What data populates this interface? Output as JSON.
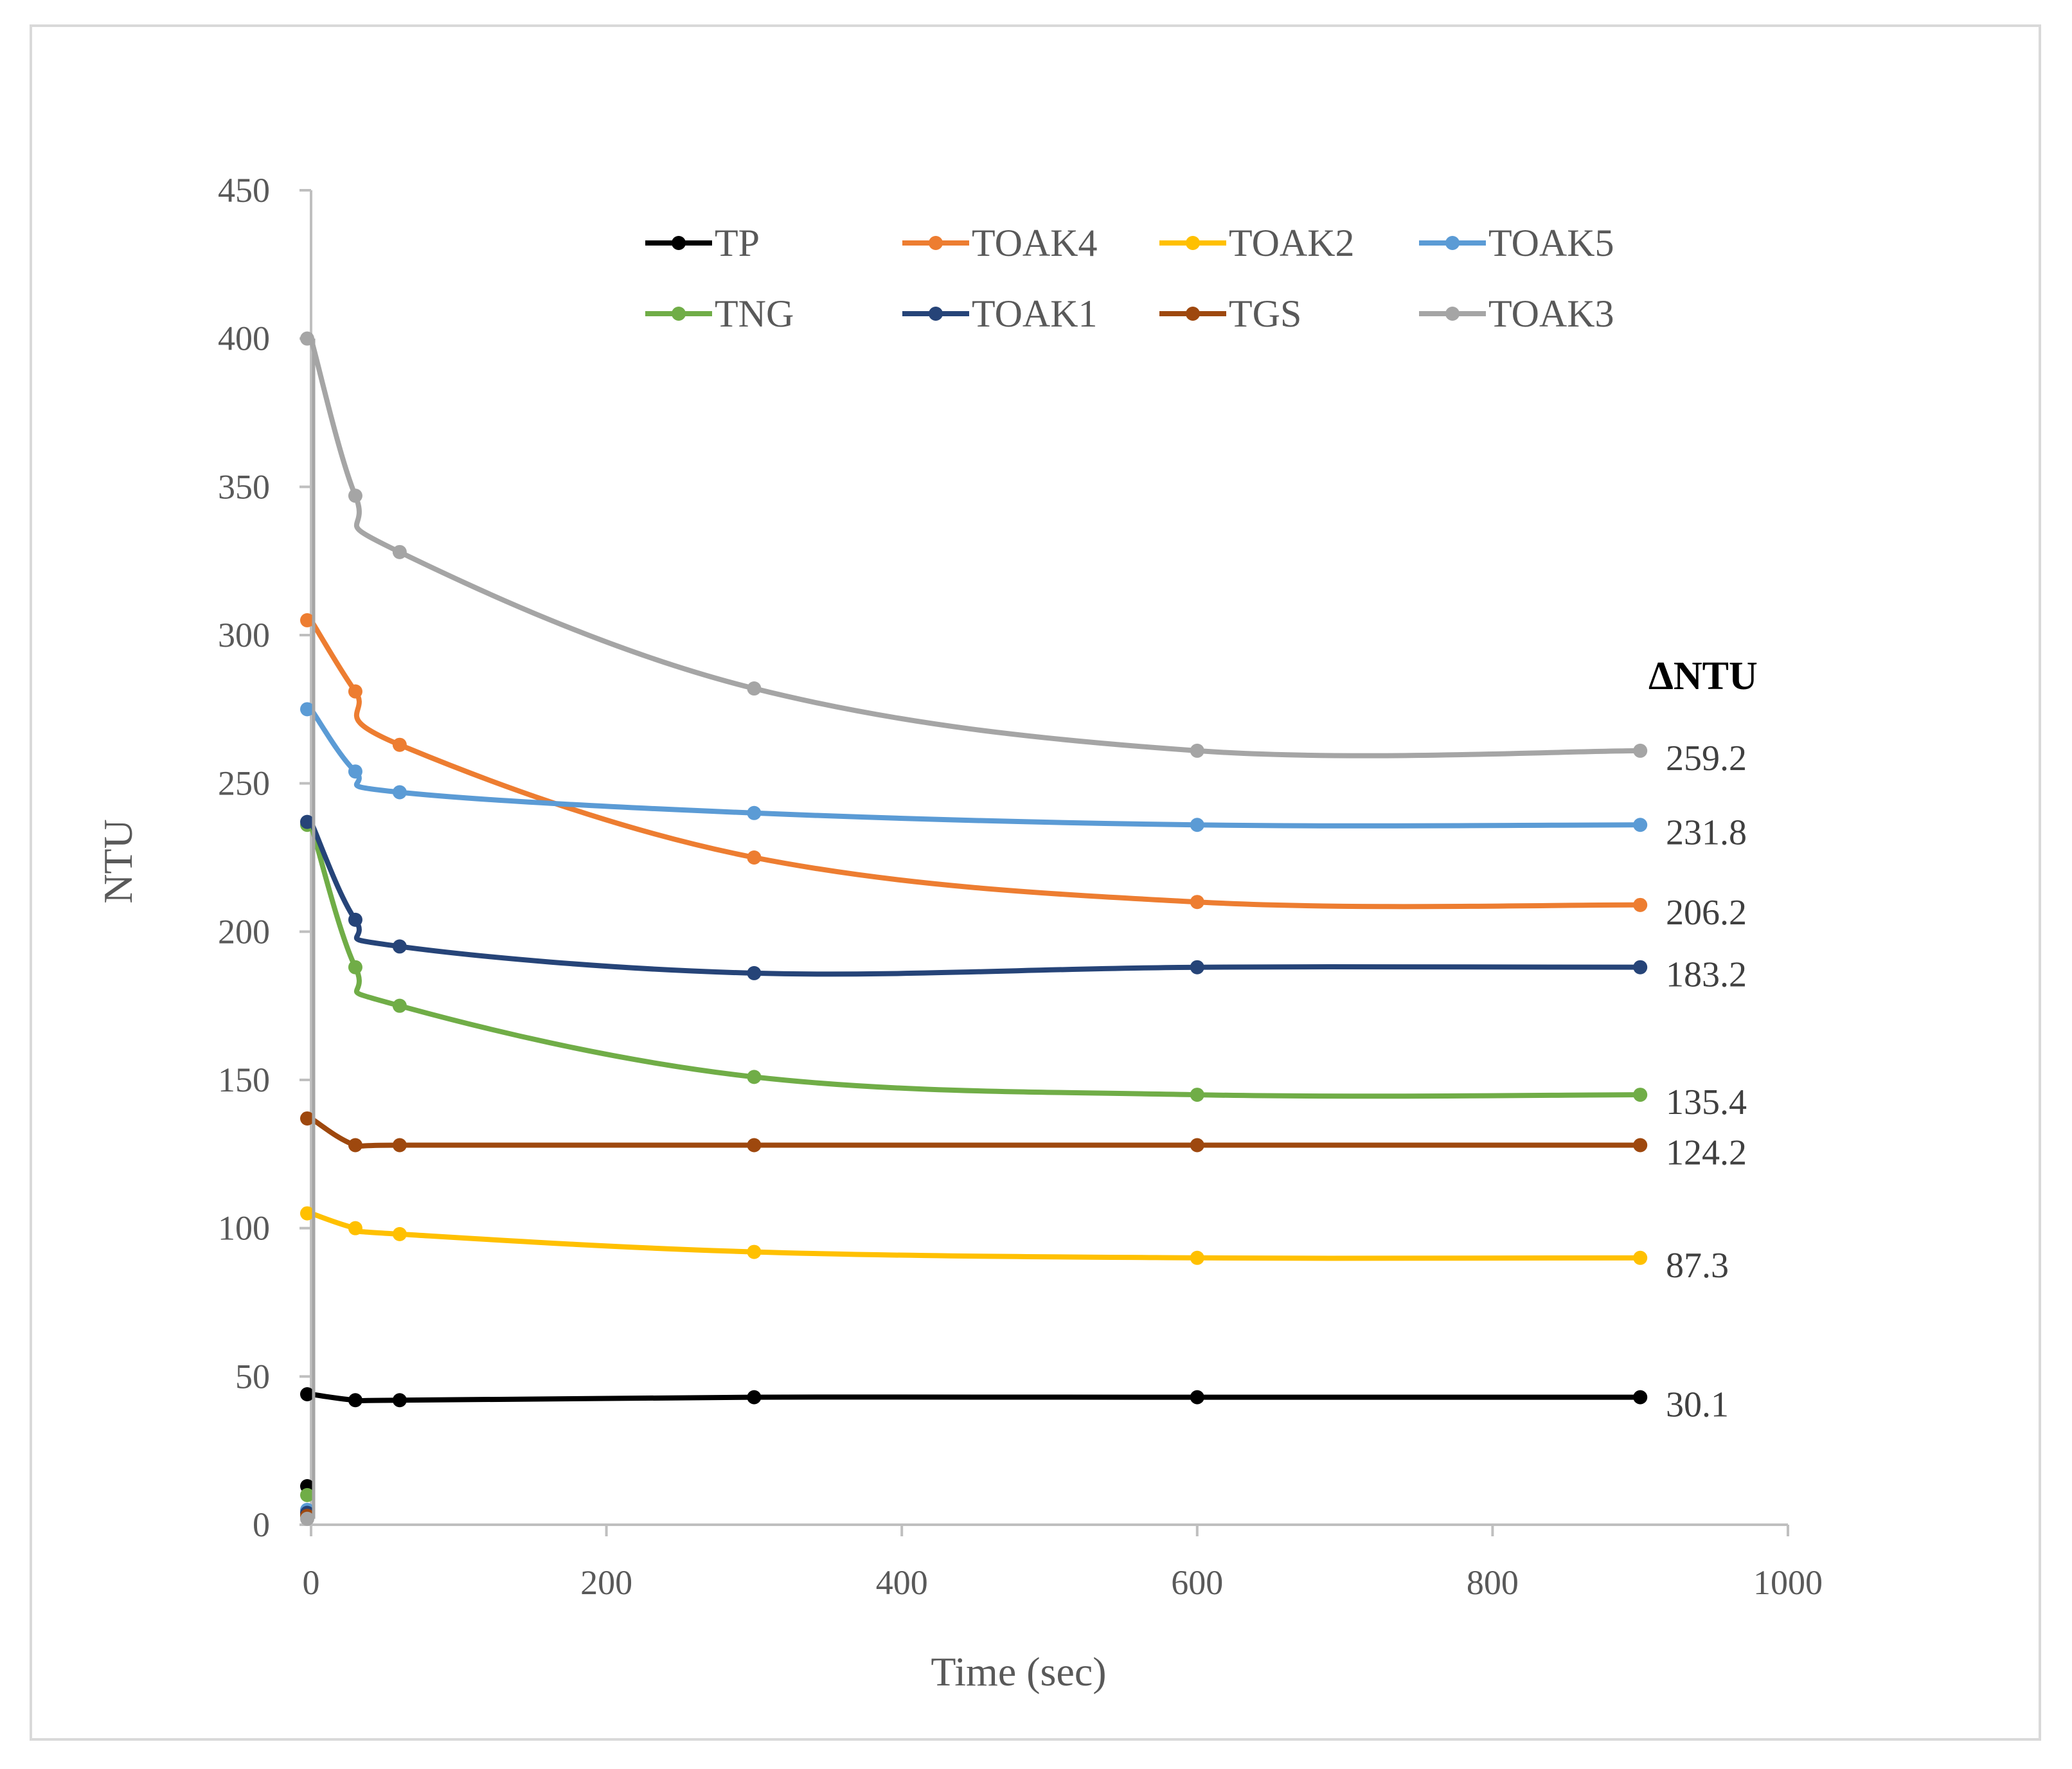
{
  "chart_data": {
    "type": "line",
    "title": "",
    "xlabel": "Time (sec)",
    "ylabel": "NTU",
    "xlim": [
      0,
      1000
    ],
    "ylim": [
      0,
      450
    ],
    "x_ticks": [
      0,
      200,
      400,
      600,
      800,
      1000
    ],
    "y_ticks": [
      0,
      50,
      100,
      150,
      200,
      250,
      300,
      350,
      400,
      450
    ],
    "grid": false,
    "legend_position": "top",
    "x": [
      0,
      30,
      60,
      300,
      600,
      900
    ],
    "series": [
      {
        "name": "TP",
        "color": "#000000",
        "initial": 13,
        "values": [
          44,
          42,
          42,
          43,
          43,
          43
        ]
      },
      {
        "name": "TOAK4",
        "color": "#ED7D31",
        "initial": 4,
        "values": [
          305,
          281,
          263,
          225,
          210,
          209
        ]
      },
      {
        "name": "TOAK2",
        "color": "#FFC000",
        "initial": 3,
        "values": [
          105,
          100,
          98,
          92,
          90,
          90
        ]
      },
      {
        "name": "TOAK5",
        "color": "#5B9BD5",
        "initial": 5,
        "values": [
          275,
          254,
          247,
          240,
          236,
          236
        ]
      },
      {
        "name": "TNG",
        "color": "#70AD47",
        "initial": 10,
        "values": [
          236,
          188,
          175,
          151,
          145,
          145
        ]
      },
      {
        "name": "TOAK1",
        "color": "#264478",
        "initial": 4,
        "values": [
          237,
          204,
          195,
          186,
          188,
          188
        ]
      },
      {
        "name": "TGS",
        "color": "#9E480E",
        "initial": 3,
        "values": [
          137,
          128,
          128,
          128,
          128,
          128
        ]
      },
      {
        "name": "TOAK3",
        "color": "#A5A5A5",
        "initial": 2,
        "values": [
          400,
          347,
          328,
          282,
          261,
          261
        ]
      }
    ],
    "delta_heading": "ΔNTU",
    "delta_labels": [
      {
        "series": "TOAK3",
        "text": "259.2"
      },
      {
        "series": "TOAK5",
        "text": "231.8"
      },
      {
        "series": "TOAK4",
        "text": "206.2"
      },
      {
        "series": "TOAK1",
        "text": "183.2"
      },
      {
        "series": "TNG",
        "text": "135.4"
      },
      {
        "series": "TGS",
        "text": "124.2"
      },
      {
        "series": "TOAK2",
        "text": "87.3"
      },
      {
        "series": "TP",
        "text": "30.1"
      }
    ]
  }
}
